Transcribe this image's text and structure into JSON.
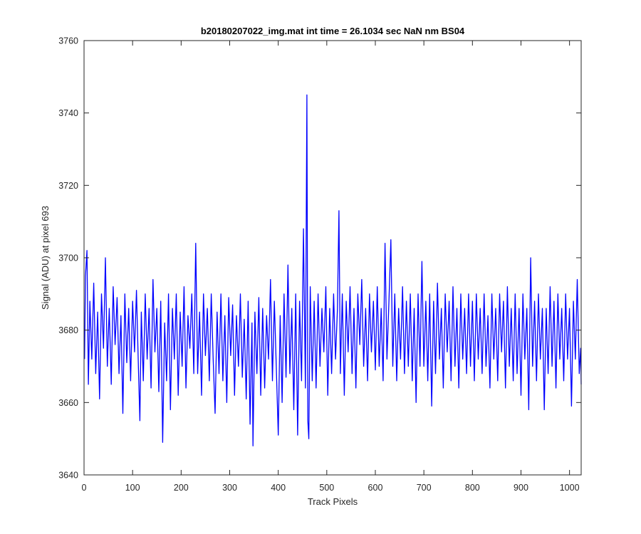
{
  "chart_data": {
    "type": "line",
    "title": "b20180207022_img.mat int time = 26.1034 sec  NaN nm BS04",
    "xlabel": "Track Pixels",
    "ylabel": "Signal (ADU) at pixel 693",
    "xlim": [
      0,
      1024
    ],
    "ylim": [
      3640,
      3760
    ],
    "xticks": [
      0,
      100,
      200,
      300,
      400,
      500,
      600,
      700,
      800,
      900,
      1000
    ],
    "yticks": [
      3640,
      3660,
      3680,
      3700,
      3720,
      3740,
      3760
    ],
    "grid": false,
    "legend": "none",
    "series": [
      {
        "color": "#0000ff",
        "x_start": 1,
        "x_step": 1,
        "noise_baseline": 3678,
        "note_values": "approximate trace; key extremes listed",
        "points": [
          [
            1,
            3672
          ],
          [
            3,
            3695
          ],
          [
            6,
            3702
          ],
          [
            9,
            3665
          ],
          [
            12,
            3688
          ],
          [
            16,
            3672
          ],
          [
            20,
            3693
          ],
          [
            24,
            3668
          ],
          [
            28,
            3685
          ],
          [
            32,
            3661
          ],
          [
            36,
            3690
          ],
          [
            40,
            3675
          ],
          [
            44,
            3700
          ],
          [
            48,
            3670
          ],
          [
            52,
            3686
          ],
          [
            56,
            3665
          ],
          [
            60,
            3692
          ],
          [
            64,
            3676
          ],
          [
            68,
            3689
          ],
          [
            72,
            3668
          ],
          [
            76,
            3684
          ],
          [
            80,
            3657
          ],
          [
            84,
            3690
          ],
          [
            88,
            3671
          ],
          [
            92,
            3686
          ],
          [
            96,
            3666
          ],
          [
            100,
            3688
          ],
          [
            104,
            3674
          ],
          [
            108,
            3691
          ],
          [
            112,
            3670
          ],
          [
            115,
            3655
          ],
          [
            118,
            3685
          ],
          [
            122,
            3666
          ],
          [
            126,
            3690
          ],
          [
            130,
            3672
          ],
          [
            134,
            3686
          ],
          [
            138,
            3664
          ],
          [
            142,
            3694
          ],
          [
            146,
            3674
          ],
          [
            150,
            3686
          ],
          [
            154,
            3663
          ],
          [
            158,
            3688
          ],
          [
            162,
            3649
          ],
          [
            166,
            3682
          ],
          [
            170,
            3666
          ],
          [
            174,
            3690
          ],
          [
            178,
            3658
          ],
          [
            182,
            3686
          ],
          [
            186,
            3672
          ],
          [
            190,
            3690
          ],
          [
            194,
            3662
          ],
          [
            198,
            3685
          ],
          [
            202,
            3670
          ],
          [
            206,
            3692
          ],
          [
            210,
            3664
          ],
          [
            214,
            3684
          ],
          [
            218,
            3675
          ],
          [
            222,
            3690
          ],
          [
            226,
            3668
          ],
          [
            230,
            3704
          ],
          [
            234,
            3668
          ],
          [
            238,
            3685
          ],
          [
            242,
            3662
          ],
          [
            246,
            3690
          ],
          [
            250,
            3673
          ],
          [
            254,
            3686
          ],
          [
            258,
            3666
          ],
          [
            262,
            3690
          ],
          [
            266,
            3672
          ],
          [
            270,
            3657
          ],
          [
            274,
            3685
          ],
          [
            278,
            3668
          ],
          [
            282,
            3690
          ],
          [
            286,
            3666
          ],
          [
            290,
            3684
          ],
          [
            294,
            3660
          ],
          [
            298,
            3689
          ],
          [
            302,
            3673
          ],
          [
            306,
            3687
          ],
          [
            310,
            3662
          ],
          [
            314,
            3684
          ],
          [
            318,
            3670
          ],
          [
            322,
            3690
          ],
          [
            326,
            3667
          ],
          [
            330,
            3683
          ],
          [
            334,
            3661
          ],
          [
            338,
            3688
          ],
          [
            342,
            3654
          ],
          [
            346,
            3682
          ],
          [
            348,
            3648
          ],
          [
            352,
            3685
          ],
          [
            356,
            3668
          ],
          [
            360,
            3689
          ],
          [
            364,
            3662
          ],
          [
            368,
            3686
          ],
          [
            372,
            3664
          ],
          [
            376,
            3684
          ],
          [
            380,
            3672
          ],
          [
            384,
            3694
          ],
          [
            388,
            3666
          ],
          [
            392,
            3688
          ],
          [
            396,
            3670
          ],
          [
            400,
            3651
          ],
          [
            404,
            3684
          ],
          [
            408,
            3660
          ],
          [
            412,
            3690
          ],
          [
            416,
            3667
          ],
          [
            420,
            3698
          ],
          [
            424,
            3668
          ],
          [
            428,
            3686
          ],
          [
            432,
            3658
          ],
          [
            436,
            3690
          ],
          [
            440,
            3651
          ],
          [
            444,
            3688
          ],
          [
            448,
            3666
          ],
          [
            452,
            3708
          ],
          [
            456,
            3664
          ],
          [
            459,
            3745
          ],
          [
            461,
            3655
          ],
          [
            463,
            3650
          ],
          [
            466,
            3692
          ],
          [
            470,
            3666
          ],
          [
            474,
            3688
          ],
          [
            478,
            3664
          ],
          [
            482,
            3690
          ],
          [
            486,
            3670
          ],
          [
            490,
            3686
          ],
          [
            494,
            3674
          ],
          [
            498,
            3692
          ],
          [
            502,
            3662
          ],
          [
            506,
            3686
          ],
          [
            510,
            3668
          ],
          [
            514,
            3690
          ],
          [
            518,
            3672
          ],
          [
            522,
            3686
          ],
          [
            525,
            3713
          ],
          [
            528,
            3668
          ],
          [
            532,
            3690
          ],
          [
            536,
            3662
          ],
          [
            540,
            3688
          ],
          [
            544,
            3674
          ],
          [
            548,
            3692
          ],
          [
            552,
            3668
          ],
          [
            556,
            3686
          ],
          [
            560,
            3664
          ],
          [
            564,
            3690
          ],
          [
            568,
            3676
          ],
          [
            572,
            3694
          ],
          [
            576,
            3670
          ],
          [
            580,
            3686
          ],
          [
            584,
            3666
          ],
          [
            588,
            3690
          ],
          [
            592,
            3674
          ],
          [
            596,
            3688
          ],
          [
            600,
            3669
          ],
          [
            604,
            3692
          ],
          [
            608,
            3670
          ],
          [
            612,
            3686
          ],
          [
            616,
            3666
          ],
          [
            620,
            3704
          ],
          [
            624,
            3672
          ],
          [
            628,
            3688
          ],
          [
            632,
            3705
          ],
          [
            636,
            3670
          ],
          [
            640,
            3690
          ],
          [
            644,
            3666
          ],
          [
            648,
            3686
          ],
          [
            652,
            3672
          ],
          [
            656,
            3692
          ],
          [
            660,
            3668
          ],
          [
            664,
            3688
          ],
          [
            668,
            3670
          ],
          [
            672,
            3690
          ],
          [
            676,
            3666
          ],
          [
            680,
            3686
          ],
          [
            684,
            3660
          ],
          [
            688,
            3690
          ],
          [
            692,
            3670
          ],
          [
            696,
            3699
          ],
          [
            700,
            3670
          ],
          [
            704,
            3688
          ],
          [
            708,
            3666
          ],
          [
            712,
            3690
          ],
          [
            716,
            3659
          ],
          [
            720,
            3688
          ],
          [
            724,
            3668
          ],
          [
            728,
            3693
          ],
          [
            732,
            3672
          ],
          [
            736,
            3686
          ],
          [
            740,
            3664
          ],
          [
            744,
            3690
          ],
          [
            748,
            3674
          ],
          [
            752,
            3688
          ],
          [
            756,
            3666
          ],
          [
            760,
            3692
          ],
          [
            764,
            3670
          ],
          [
            768,
            3686
          ],
          [
            772,
            3664
          ],
          [
            776,
            3690
          ],
          [
            780,
            3672
          ],
          [
            784,
            3686
          ],
          [
            788,
            3668
          ],
          [
            792,
            3690
          ],
          [
            796,
            3670
          ],
          [
            800,
            3688
          ],
          [
            804,
            3666
          ],
          [
            808,
            3690
          ],
          [
            812,
            3672
          ],
          [
            816,
            3686
          ],
          [
            820,
            3668
          ],
          [
            824,
            3690
          ],
          [
            828,
            3670
          ],
          [
            832,
            3684
          ],
          [
            836,
            3664
          ],
          [
            840,
            3690
          ],
          [
            844,
            3672
          ],
          [
            848,
            3686
          ],
          [
            852,
            3666
          ],
          [
            856,
            3690
          ],
          [
            860,
            3674
          ],
          [
            864,
            3688
          ],
          [
            868,
            3664
          ],
          [
            872,
            3692
          ],
          [
            876,
            3670
          ],
          [
            880,
            3686
          ],
          [
            884,
            3666
          ],
          [
            888,
            3690
          ],
          [
            892,
            3668
          ],
          [
            896,
            3686
          ],
          [
            900,
            3662
          ],
          [
            904,
            3690
          ],
          [
            908,
            3672
          ],
          [
            912,
            3686
          ],
          [
            916,
            3658
          ],
          [
            920,
            3700
          ],
          [
            924,
            3670
          ],
          [
            928,
            3688
          ],
          [
            932,
            3666
          ],
          [
            936,
            3690
          ],
          [
            940,
            3672
          ],
          [
            944,
            3686
          ],
          [
            948,
            3658
          ],
          [
            952,
            3686
          ],
          [
            956,
            3668
          ],
          [
            960,
            3692
          ],
          [
            964,
            3670
          ],
          [
            968,
            3688
          ],
          [
            972,
            3664
          ],
          [
            976,
            3690
          ],
          [
            980,
            3672
          ],
          [
            984,
            3686
          ],
          [
            988,
            3666
          ],
          [
            992,
            3690
          ],
          [
            996,
            3672
          ],
          [
            1000,
            3686
          ],
          [
            1004,
            3659
          ],
          [
            1008,
            3688
          ],
          [
            1012,
            3672
          ],
          [
            1016,
            3694
          ],
          [
            1020,
            3668
          ],
          [
            1023,
            3675
          ],
          [
            1024,
            3665
          ]
        ]
      }
    ]
  }
}
